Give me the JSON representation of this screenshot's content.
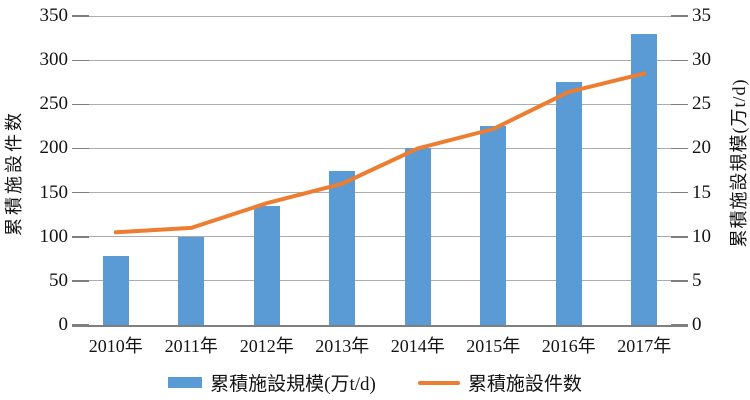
{
  "chart_data": {
    "type": "bar+line combo",
    "title": "",
    "categories": [
      "2010年",
      "2011年",
      "2012年",
      "2013年",
      "2014年",
      "2015年",
      "2016年",
      "2017年"
    ],
    "series": [
      {
        "name": "累積施設規模(万t/d)",
        "type": "bar",
        "axis": "right",
        "color": "#5B9BD5",
        "values": [
          7.8,
          10.0,
          13.5,
          17.5,
          20.0,
          22.5,
          27.5,
          33.0
        ]
      },
      {
        "name": "累積施設件数",
        "type": "line",
        "axis": "left",
        "color": "#ED7D31",
        "values": [
          105,
          110,
          138,
          160,
          200,
          222,
          264,
          285
        ]
      }
    ],
    "left_axis": {
      "label": "累積施設件数",
      "min": 0,
      "max": 350,
      "step": 50,
      "ticks": [
        "0",
        "50",
        "100",
        "150",
        "200",
        "250",
        "300",
        "350"
      ]
    },
    "right_axis": {
      "label": "累積施設規模(万t/d)",
      "min": 0,
      "max": 35,
      "step": 5,
      "ticks": [
        "0",
        "5",
        "10",
        "15",
        "20",
        "25",
        "30",
        "35"
      ]
    },
    "grid": true,
    "legend_position": "bottom",
    "colors": {
      "bar": "#5B9BD5",
      "line": "#ED7D31",
      "gridline": "#ACACAC",
      "axis": "#7F7F7F",
      "text": "#141414",
      "background": "#FFFFFF"
    }
  }
}
